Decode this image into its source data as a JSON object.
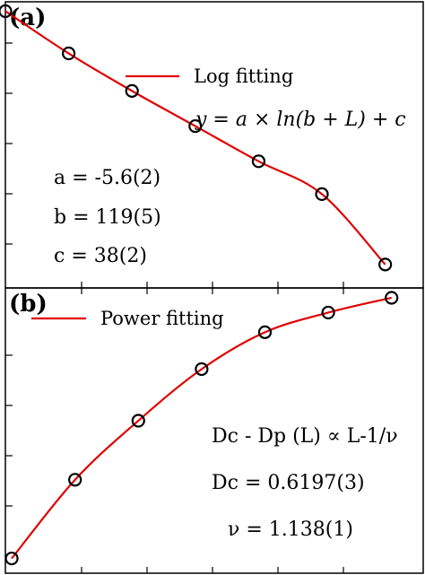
{
  "chart_data": [
    {
      "type": "scatter",
      "panel_label": "(a)",
      "legend": {
        "line_label": "Log fitting",
        "line_color": "#e00000"
      },
      "equation": "y = a × ln(b + L) + c",
      "params": [
        "a = -5.6(2)",
        "b = 119(5)",
        "c = 38(2)"
      ],
      "xlim": [
        0,
        6.6
      ],
      "ylim": [
        3.6,
        9.7
      ],
      "x": [
        0,
        1,
        2,
        3,
        4,
        5,
        6
      ],
      "y": [
        9.5,
        8.6,
        7.8,
        7.05,
        6.3,
        5.6,
        4.1
      ],
      "fit": "log",
      "marker_color": "#000000"
    },
    {
      "type": "scatter",
      "panel_label": "(b)",
      "legend": {
        "line_label": "Power fitting",
        "line_color": "#e00000"
      },
      "equation": "Dc - Dp (L) ∝ L-1/ν",
      "params": [
        "Dc = 0.6197(3)",
        "ν = 1.138(1)"
      ],
      "xlim": [
        -0.1,
        6.5
      ],
      "ylim": [
        -0.3,
        5.5
      ],
      "x": [
        0,
        1,
        2,
        3,
        4,
        5,
        6
      ],
      "y": [
        0,
        1.6,
        2.8,
        3.85,
        4.6,
        5.0,
        5.3
      ],
      "fit": "power",
      "marker_color": "#000000"
    }
  ]
}
